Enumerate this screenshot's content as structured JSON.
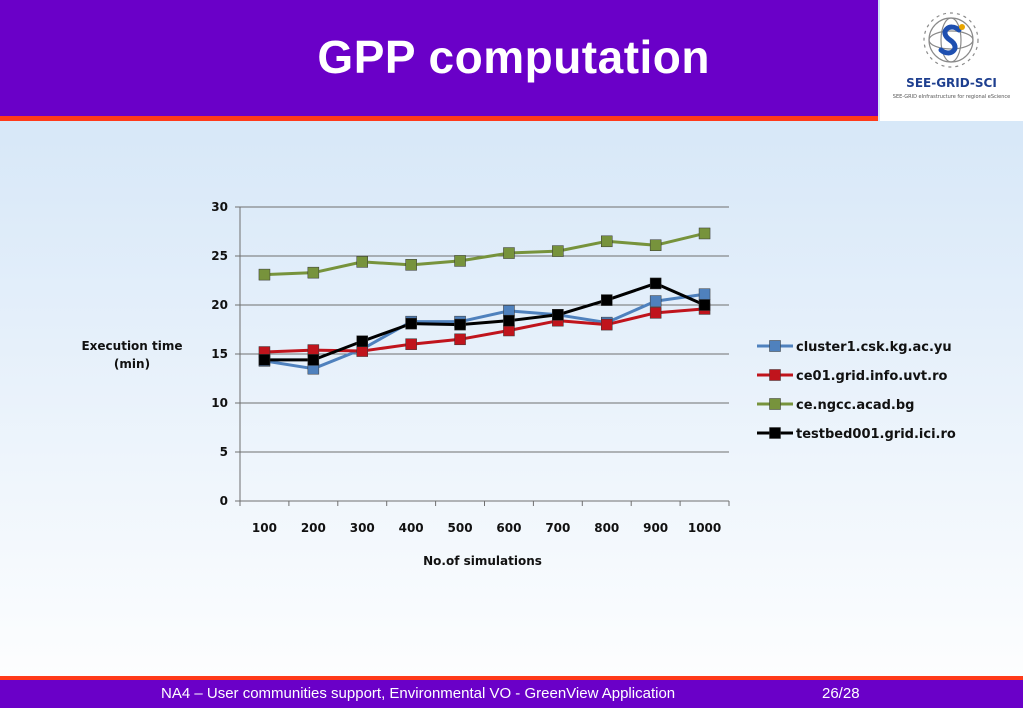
{
  "header": {
    "title": "GPP computation"
  },
  "logo": {
    "name": "SEE-GRID-SCI",
    "tagline": "SEE-GRID eInfrastructure for regional eScience"
  },
  "footer": {
    "text": "NA4 – User communities support, Environmental VO  - GreenView Application",
    "page": "26/28"
  },
  "colors": {
    "header_bg": "#6a00c8",
    "accent_line": "#ff3a1a",
    "grid": "#6f6f6f"
  },
  "chart_data": {
    "type": "line",
    "title": "",
    "xlabel": "No.of simulations",
    "ylabel": "Execution time\n(min)",
    "categories": [
      "100",
      "200",
      "300",
      "400",
      "500",
      "600",
      "700",
      "800",
      "900",
      "1000"
    ],
    "ylim": [
      0,
      30
    ],
    "yticks": [
      0,
      5,
      10,
      15,
      20,
      25,
      30
    ],
    "grid": true,
    "legend_position": "right",
    "series": [
      {
        "name": "cluster1.csk.kg.ac.yu",
        "color": "#4f81bd",
        "values": [
          14.3,
          13.5,
          15.5,
          18.3,
          18.3,
          19.4,
          19.0,
          18.2,
          20.4,
          21.1
        ]
      },
      {
        "name": "ce01.grid.info.uvt.ro",
        "color": "#c0141c",
        "values": [
          15.2,
          15.4,
          15.3,
          16.0,
          16.5,
          17.4,
          18.4,
          18.0,
          19.2,
          19.6
        ]
      },
      {
        "name": "ce.ngcc.acad.bg",
        "color": "#77933c",
        "values": [
          23.1,
          23.3,
          24.4,
          24.1,
          24.5,
          25.3,
          25.5,
          26.5,
          26.1,
          27.3
        ]
      },
      {
        "name": "testbed001.grid.ici.ro",
        "color": "#000000",
        "values": [
          14.4,
          14.4,
          16.3,
          18.1,
          18.0,
          18.4,
          19.0,
          20.5,
          22.2,
          20.0
        ]
      }
    ]
  }
}
